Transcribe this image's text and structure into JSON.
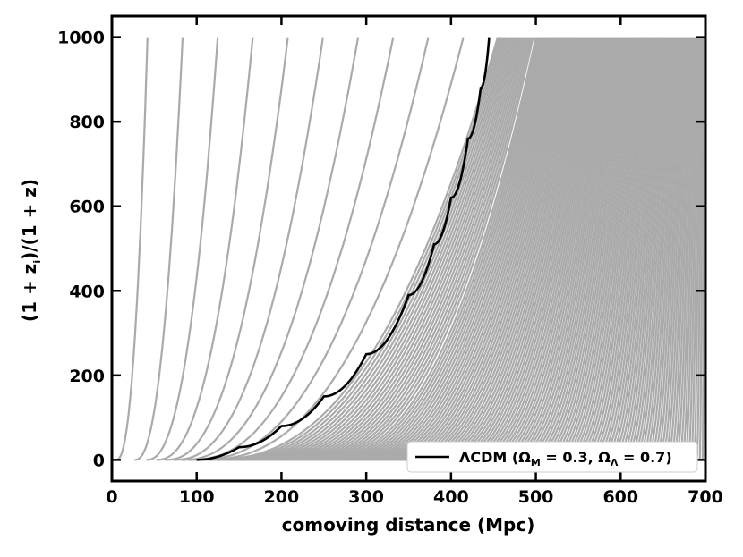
{
  "chart_data": {
    "type": "line",
    "xlabel": "comoving distance (Mpc)",
    "ylabel": {
      "pre": "(1 + z",
      "sub": "i",
      "post": ")/(1 + z)"
    },
    "xlim": [
      0,
      700
    ],
    "ylim": [
      -50,
      1050
    ],
    "x_ticks": [
      0,
      100,
      200,
      300,
      400,
      500,
      600,
      700
    ],
    "y_ticks": [
      0,
      200,
      400,
      600,
      800,
      1000
    ],
    "grid": false,
    "legend_position": "bottom-right",
    "colors": {
      "background_curves": "#aaaaaa",
      "lcdm_curve": "#000000",
      "axes": "#000000"
    },
    "background_curves": {
      "color_name": "gray",
      "description_shape": "family of curves from y=0 to y=1000",
      "start_x_first": 5,
      "start_x_last": 700,
      "end_x_first": 42,
      "end_x_last": 700,
      "y_range": [
        0,
        1000
      ]
    },
    "series": [
      {
        "name": {
          "pre": "ΛCDM (Ω",
          "sub1": "M",
          "mid": " = 0.3, Ω",
          "sub2": "Λ",
          "post": " = 0.7)"
        },
        "color": "#000000",
        "points": [
          [
            100,
            0
          ],
          [
            150,
            30
          ],
          [
            200,
            80
          ],
          [
            250,
            150
          ],
          [
            300,
            250
          ],
          [
            350,
            390
          ],
          [
            380,
            510
          ],
          [
            400,
            620
          ],
          [
            420,
            760
          ],
          [
            435,
            880
          ],
          [
            445,
            1000
          ]
        ]
      }
    ]
  }
}
